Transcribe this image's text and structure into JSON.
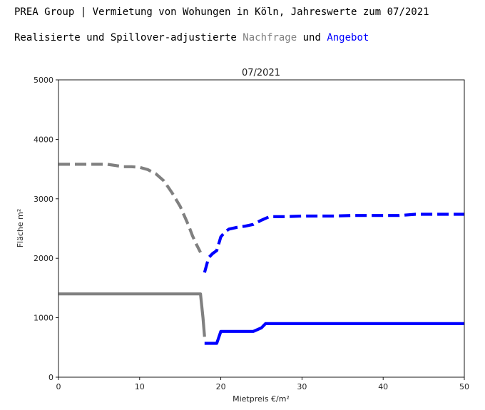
{
  "header": {
    "line1": "PREA Group | Vermietung von Wohungen in Köln, Jahreswerte zum 07/2021",
    "line2_prefix": "Realisierte und Spillover-adjustierte ",
    "line2_demand": "Nachfrage",
    "line2_mid": " und ",
    "line2_supply": "Angebot"
  },
  "chart_data": {
    "type": "line",
    "title": "07/2021",
    "xlabel": "Mietpreis €/m²",
    "ylabel": "Fläche m²",
    "xlim": [
      0,
      50
    ],
    "ylim": [
      0,
      5000
    ],
    "xticks": [
      0,
      10,
      20,
      30,
      40,
      50
    ],
    "yticks": [
      0,
      1000,
      2000,
      3000,
      4000,
      5000
    ],
    "grid": false,
    "colors": {
      "demand": "#808080",
      "supply": "#0000ff"
    },
    "series": [
      {
        "key": "demand_adjusted",
        "color": "#808080",
        "style": "dashed",
        "x": [
          0,
          2,
          4,
          6,
          7,
          8,
          9,
          10,
          11,
          12,
          13,
          14,
          15,
          16,
          16.5,
          17,
          17.5
        ],
        "y": [
          3580,
          3580,
          3580,
          3580,
          3560,
          3540,
          3540,
          3530,
          3490,
          3420,
          3300,
          3100,
          2870,
          2560,
          2380,
          2230,
          2100
        ]
      },
      {
        "key": "supply_adjusted",
        "color": "#0000ff",
        "style": "dashed",
        "x": [
          18,
          18.5,
          19,
          19.5,
          20,
          20.5,
          21,
          22,
          23,
          24,
          25,
          26,
          28,
          30,
          32,
          34,
          36,
          38,
          40,
          42,
          44,
          46,
          48,
          50
        ],
        "y": [
          1760,
          2010,
          2080,
          2130,
          2360,
          2440,
          2490,
          2520,
          2540,
          2570,
          2640,
          2700,
          2700,
          2710,
          2710,
          2710,
          2720,
          2720,
          2720,
          2720,
          2740,
          2740,
          2740,
          2740
        ]
      },
      {
        "key": "demand_realized",
        "color": "#808080",
        "style": "solid",
        "x": [
          0,
          5,
          10,
          15,
          17.5,
          17.8,
          18
        ],
        "y": [
          1400,
          1400,
          1400,
          1400,
          1400,
          1000,
          680
        ]
      },
      {
        "key": "supply_realized",
        "color": "#0000ff",
        "style": "solid",
        "x": [
          18,
          19,
          19.5,
          20,
          21,
          22,
          23,
          24,
          25,
          25.5,
          26,
          30,
          35,
          40,
          45,
          50
        ],
        "y": [
          570,
          570,
          570,
          770,
          770,
          770,
          770,
          770,
          830,
          900,
          900,
          900,
          900,
          900,
          900,
          900
        ]
      }
    ]
  }
}
